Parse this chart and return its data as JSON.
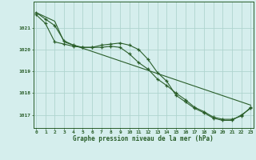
{
  "line1_x": [
    0,
    1,
    2,
    3,
    4,
    5,
    6,
    7,
    8,
    9,
    10,
    11,
    12,
    13,
    14,
    15,
    16,
    17,
    18,
    19,
    20,
    21,
    22,
    23
  ],
  "line1_y": [
    1021.7,
    1021.4,
    1021.1,
    1020.4,
    1020.2,
    1020.1,
    1020.1,
    1020.2,
    1020.25,
    1020.3,
    1020.2,
    1020.0,
    1019.55,
    1018.95,
    1018.55,
    1017.9,
    1017.6,
    1017.3,
    1017.1,
    1016.85,
    1016.75,
    1016.75,
    1017.0,
    1017.3
  ],
  "line2_x": [
    0,
    1,
    2,
    3,
    4,
    5,
    6,
    7,
    8,
    9,
    10,
    11,
    12,
    13,
    14,
    15,
    16,
    17,
    18,
    19,
    20,
    21,
    22,
    23
  ],
  "line2_y": [
    1021.6,
    1021.2,
    1020.35,
    1020.25,
    1020.15,
    1020.1,
    1020.1,
    1020.1,
    1020.15,
    1020.1,
    1019.8,
    1019.4,
    1019.1,
    1018.65,
    1018.35,
    1018.0,
    1017.7,
    1017.35,
    1017.15,
    1016.9,
    1016.8,
    1016.8,
    1016.95,
    1017.35
  ],
  "line3_x": [
    0,
    2,
    3,
    23
  ],
  "line3_y": [
    1021.7,
    1021.3,
    1020.35,
    1017.45
  ],
  "bg_color": "#d5eeed",
  "grid_color": "#afd4cf",
  "line_color": "#2a5e2a",
  "xlabel": "Graphe pression niveau de la mer (hPa)",
  "yticks": [
    1017,
    1018,
    1019,
    1020,
    1021
  ],
  "xticks": [
    0,
    1,
    2,
    3,
    4,
    5,
    6,
    7,
    8,
    9,
    10,
    11,
    12,
    13,
    14,
    15,
    16,
    17,
    18,
    19,
    20,
    21,
    22,
    23
  ],
  "ylim": [
    1016.4,
    1022.2
  ],
  "xlim": [
    -0.3,
    23.3
  ]
}
